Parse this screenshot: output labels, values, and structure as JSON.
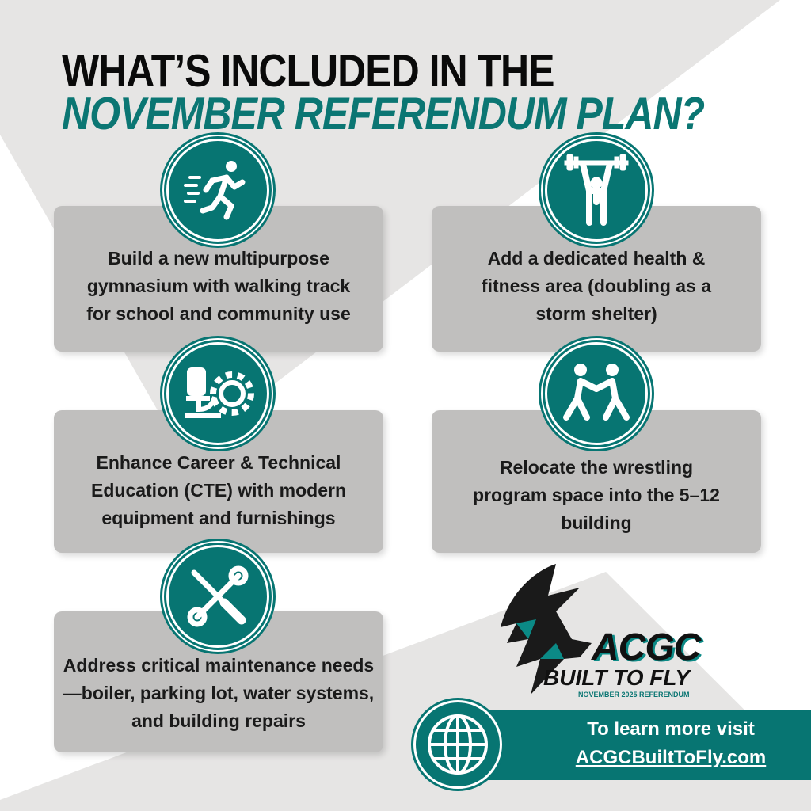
{
  "header": {
    "line1": "WHAT’S INCLUDED IN THE",
    "line2": "NOVEMBER REFERENDUM PLAN?"
  },
  "items": [
    {
      "icon": "runner-icon",
      "text": "Build a new multipurpose gymnasium with walking track for school and community use"
    },
    {
      "icon": "weightlifter-icon",
      "text": "Add a dedicated health & fitness area (doubling as a storm shelter)"
    },
    {
      "icon": "microscope-gear-icon",
      "text": "Enhance Career & Technical Education (CTE) with modern equipment and furnishings"
    },
    {
      "icon": "wrestlers-icon",
      "text": "Relocate the wrestling program space into the 5–12 building"
    },
    {
      "icon": "wrench-screwdriver-icon",
      "text": "Address critical maintenance needs—boiler, parking lot, water systems, and building repairs"
    }
  ],
  "logo": {
    "name": "ACGC",
    "tagline": "BUILT TO FLY",
    "subtitle": "NOVEMBER 2025 REFERENDUM"
  },
  "footer": {
    "icon": "globe-icon",
    "line1": "To learn more visit",
    "link": "ACGCBuiltToFly.com"
  },
  "colors": {
    "teal": "#077572",
    "card": "#c0bfbe",
    "background_shape": "#e6e5e4"
  }
}
